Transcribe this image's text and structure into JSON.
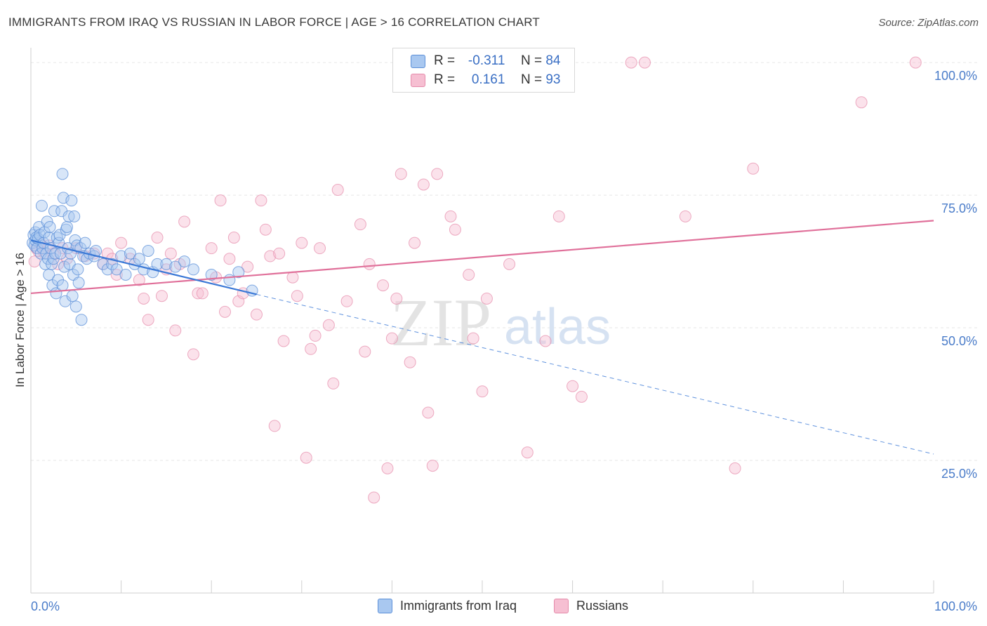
{
  "title": "IMMIGRANTS FROM IRAQ VS RUSSIAN IN LABOR FORCE | AGE > 16 CORRELATION CHART",
  "source": "Source: ZipAtlas.com",
  "watermark": {
    "zip": "ZIP",
    "atlas": "atlas"
  },
  "legend": {
    "rows": [
      {
        "r_label": "R =",
        "r_value": "-0.311",
        "n_label": "N =",
        "n_value": "84"
      },
      {
        "r_label": "R =",
        "r_value": "0.161",
        "n_label": "N =",
        "n_value": "93"
      }
    ]
  },
  "bottom_legend": [
    "Immigrants from Iraq",
    "Russians"
  ],
  "colors": {
    "blue_fill": "#a9c8f0",
    "blue_stroke": "#5b8fd8",
    "blue_line": "#3a78d6",
    "pink_fill": "#f6bfd2",
    "pink_stroke": "#e58aaa",
    "pink_line": "#e0709a",
    "axis_label": "#4a7cc9",
    "grid": "#e6e6e6"
  },
  "chart_data": {
    "type": "scatter",
    "xlabel": "",
    "ylabel": "In Labor Force | Age > 16",
    "xlim": [
      0,
      100
    ],
    "ylim": [
      0,
      102
    ],
    "x_tick_labels": [
      "0.0%",
      "100.0%"
    ],
    "y_ticks": [
      25,
      50,
      75,
      100
    ],
    "y_tick_labels": [
      "25.0%",
      "50.0%",
      "75.0%",
      "100.0%"
    ],
    "grid": true,
    "legend_position": "top-center",
    "series": [
      {
        "name": "Immigrants from Iraq",
        "trend": {
          "x0": 0,
          "y0": 66.5,
          "x1": 25,
          "y1": 56.3,
          "dashed_to_x": 100,
          "dashed_to_y": 26.2
        },
        "points": [
          [
            0.2,
            66
          ],
          [
            0.3,
            67.5
          ],
          [
            0.4,
            65.5
          ],
          [
            0.5,
            68
          ],
          [
            0.5,
            66.5
          ],
          [
            0.6,
            67
          ],
          [
            0.7,
            65
          ],
          [
            0.8,
            66.8
          ],
          [
            0.9,
            69
          ],
          [
            1.0,
            67.5
          ],
          [
            1.1,
            64
          ],
          [
            1.2,
            73
          ],
          [
            1.3,
            65
          ],
          [
            1.4,
            66
          ],
          [
            1.5,
            68
          ],
          [
            1.6,
            62
          ],
          [
            1.7,
            64
          ],
          [
            1.8,
            70
          ],
          [
            1.9,
            63
          ],
          [
            2.0,
            67
          ],
          [
            2.0,
            60
          ],
          [
            2.1,
            69
          ],
          [
            2.2,
            65
          ],
          [
            2.3,
            62
          ],
          [
            2.4,
            58
          ],
          [
            2.5,
            63
          ],
          [
            2.6,
            72
          ],
          [
            2.7,
            64
          ],
          [
            2.8,
            56.5
          ],
          [
            2.9,
            67
          ],
          [
            3.0,
            59
          ],
          [
            3.1,
            66
          ],
          [
            3.2,
            67.5
          ],
          [
            3.3,
            64
          ],
          [
            3.4,
            72
          ],
          [
            3.5,
            58
          ],
          [
            3.5,
            79
          ],
          [
            3.6,
            74.5
          ],
          [
            3.7,
            61.5
          ],
          [
            3.8,
            55
          ],
          [
            3.9,
            68.5
          ],
          [
            4.0,
            69
          ],
          [
            4.1,
            65
          ],
          [
            4.2,
            71
          ],
          [
            4.3,
            62
          ],
          [
            4.4,
            64
          ],
          [
            4.5,
            74
          ],
          [
            4.6,
            56
          ],
          [
            4.7,
            60
          ],
          [
            4.8,
            71
          ],
          [
            4.9,
            66.5
          ],
          [
            5.0,
            54
          ],
          [
            5.1,
            65.5
          ],
          [
            5.2,
            61
          ],
          [
            5.3,
            58.5
          ],
          [
            5.5,
            65
          ],
          [
            5.6,
            51.5
          ],
          [
            5.8,
            63.5
          ],
          [
            6.0,
            66
          ],
          [
            6.2,
            63
          ],
          [
            6.5,
            64
          ],
          [
            7.0,
            63.5
          ],
          [
            7.2,
            64.5
          ],
          [
            8.0,
            62
          ],
          [
            8.5,
            61
          ],
          [
            9.0,
            62
          ],
          [
            9.5,
            61
          ],
          [
            10.0,
            63.5
          ],
          [
            10.5,
            60
          ],
          [
            11.0,
            64
          ],
          [
            11.5,
            62
          ],
          [
            12.0,
            63
          ],
          [
            12.5,
            61
          ],
          [
            13.0,
            64.5
          ],
          [
            13.5,
            60.5
          ],
          [
            14.0,
            62
          ],
          [
            15.0,
            62
          ],
          [
            16.0,
            61.5
          ],
          [
            17.0,
            62.5
          ],
          [
            18.0,
            61
          ],
          [
            20.0,
            60
          ],
          [
            22.0,
            59
          ],
          [
            23.0,
            60.5
          ],
          [
            24.5,
            57
          ]
        ]
      },
      {
        "name": "Russians",
        "trend": {
          "x0": 0,
          "y0": 56.5,
          "x1": 100,
          "y1": 70.2
        },
        "points": [
          [
            0.4,
            62.5
          ],
          [
            0.6,
            65
          ],
          [
            0.8,
            64.5
          ],
          [
            1.0,
            66
          ],
          [
            1.5,
            64
          ],
          [
            2.0,
            65.5
          ],
          [
            2.5,
            64
          ],
          [
            3.0,
            62
          ],
          [
            3.5,
            65
          ],
          [
            4.0,
            63
          ],
          [
            5.0,
            65
          ],
          [
            6.0,
            63.5
          ],
          [
            7.0,
            64
          ],
          [
            8.0,
            62
          ],
          [
            8.5,
            64
          ],
          [
            9.0,
            63
          ],
          [
            9.5,
            60
          ],
          [
            10.0,
            66
          ],
          [
            11.0,
            63
          ],
          [
            12.0,
            59
          ],
          [
            12.5,
            55.5
          ],
          [
            13.0,
            51.5
          ],
          [
            14.0,
            67
          ],
          [
            14.5,
            56
          ],
          [
            15.0,
            61
          ],
          [
            15.5,
            64
          ],
          [
            16.0,
            49.5
          ],
          [
            16.5,
            62
          ],
          [
            17.0,
            70
          ],
          [
            18.0,
            45
          ],
          [
            18.5,
            56.5
          ],
          [
            19.0,
            56.5
          ],
          [
            20.0,
            65
          ],
          [
            20.5,
            59.5
          ],
          [
            21.0,
            74
          ],
          [
            21.5,
            53
          ],
          [
            22.0,
            63
          ],
          [
            22.5,
            67
          ],
          [
            23.0,
            55
          ],
          [
            23.5,
            56.5
          ],
          [
            24.0,
            61.5
          ],
          [
            25.0,
            52.5
          ],
          [
            25.5,
            74
          ],
          [
            26.0,
            68.5
          ],
          [
            26.5,
            63.5
          ],
          [
            27.0,
            31.5
          ],
          [
            27.5,
            64
          ],
          [
            28.0,
            47.5
          ],
          [
            29.0,
            59.5
          ],
          [
            29.5,
            56
          ],
          [
            30.0,
            66
          ],
          [
            30.5,
            25.5
          ],
          [
            31.0,
            46
          ],
          [
            31.5,
            48.5
          ],
          [
            32.0,
            65
          ],
          [
            33.0,
            50.5
          ],
          [
            33.5,
            39.5
          ],
          [
            34.0,
            76
          ],
          [
            35.0,
            55
          ],
          [
            36.5,
            69.5
          ],
          [
            37.0,
            45.5
          ],
          [
            37.5,
            62
          ],
          [
            38.0,
            18
          ],
          [
            39.0,
            58
          ],
          [
            39.5,
            23.5
          ],
          [
            40.0,
            48
          ],
          [
            40.5,
            55.5
          ],
          [
            41.0,
            79
          ],
          [
            42.0,
            43.5
          ],
          [
            42.5,
            66
          ],
          [
            43.5,
            77
          ],
          [
            44.0,
            34
          ],
          [
            44.5,
            24
          ],
          [
            45.0,
            79
          ],
          [
            46.5,
            71
          ],
          [
            47.0,
            68.5
          ],
          [
            48.5,
            60
          ],
          [
            49.0,
            48
          ],
          [
            50.0,
            38
          ],
          [
            50.5,
            55.5
          ],
          [
            55.0,
            26.5
          ],
          [
            57.0,
            47.5
          ],
          [
            58.5,
            71
          ],
          [
            60.0,
            39
          ],
          [
            61.0,
            37
          ],
          [
            66.5,
            100
          ],
          [
            68.0,
            100
          ],
          [
            72.5,
            71
          ],
          [
            78.0,
            23.5
          ],
          [
            80.0,
            80
          ],
          [
            92.0,
            92.5
          ],
          [
            98.0,
            100
          ],
          [
            53.0,
            62
          ]
        ]
      }
    ]
  }
}
